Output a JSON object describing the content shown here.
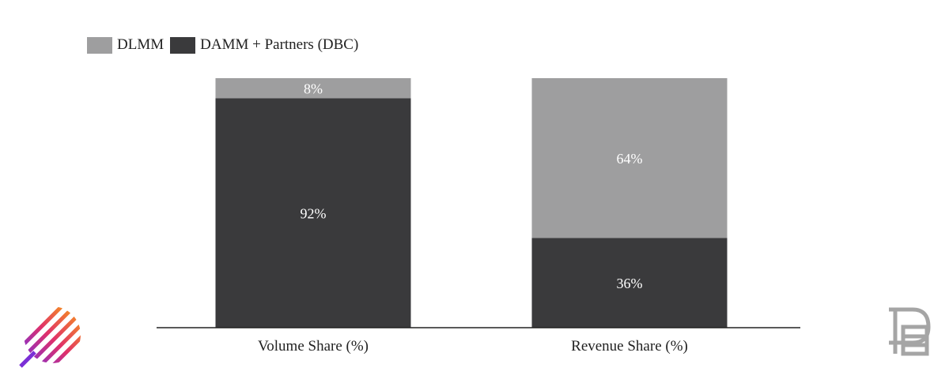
{
  "colors": {
    "dlmm": "#9e9e9f",
    "damm": "#3a3a3c",
    "axis": "#222222",
    "label_on_dark": "#ffffff",
    "label_on_light": "#ffffff"
  },
  "legend": {
    "items": [
      {
        "label": "DLMM",
        "color": "#9e9e9f"
      },
      {
        "label": "DAMM + Partners (DBC)",
        "color": "#3a3a3c"
      }
    ]
  },
  "logos": {
    "left": "striped-circle-logo",
    "right": "monogram-logo"
  },
  "chart_data": {
    "type": "bar",
    "stacked": true,
    "categories": [
      "Volume Share (%)",
      "Revenue Share (%)"
    ],
    "series": [
      {
        "name": "DAMM + Partners (DBC)",
        "values": [
          92,
          36
        ],
        "labels": [
          "92%",
          "36%"
        ]
      },
      {
        "name": "DLMM",
        "values": [
          8,
          64
        ],
        "labels": [
          "8%",
          "64%"
        ]
      }
    ],
    "ylim": [
      0,
      100
    ],
    "grid": false,
    "legend_position": "top-left"
  }
}
